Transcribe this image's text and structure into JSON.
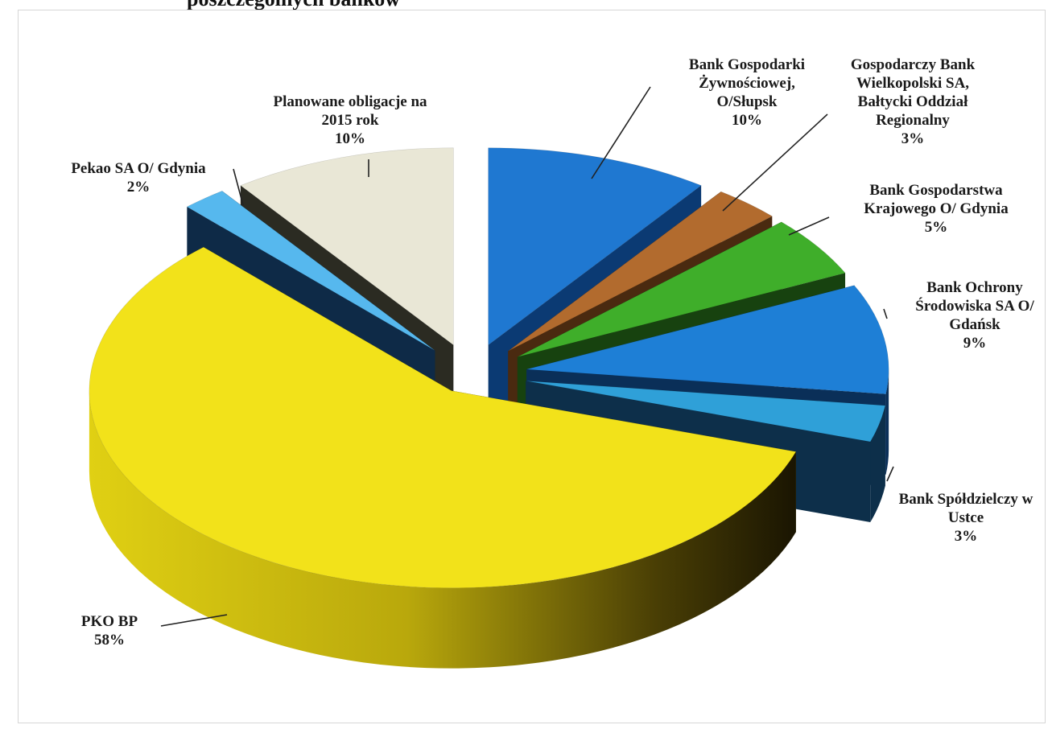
{
  "page": {
    "title": "poszczególnych banków"
  },
  "chart_data": {
    "type": "pie",
    "style": "3d-exploded",
    "title": "poszczególnych banków",
    "slices": [
      {
        "label": [
          "Bank Gospodarki",
          "Żywnościowej,",
          "O/Słupsk"
        ],
        "value": 10,
        "percent": "10%",
        "color": "#1f78d1",
        "side": "#0b3a73"
      },
      {
        "label": [
          "Gospodarczy Bank",
          "Wielkopolski SA,",
          "Bałtycki Oddział",
          "Regionalny"
        ],
        "value": 3,
        "percent": "3%",
        "color": "#b26b2e",
        "side": "#4a2a10"
      },
      {
        "label": [
          "Bank Gospodarstwa",
          "Krajowego O/ Gdynia"
        ],
        "value": 5,
        "percent": "5%",
        "color": "#3fae2a",
        "side": "#17420f"
      },
      {
        "label": [
          "Bank Ochrony",
          "Środowiska SA O/",
          "Gdańsk"
        ],
        "value": 9,
        "percent": "9%",
        "color": "#1e7fd6",
        "side": "#0a2f58"
      },
      {
        "label": [
          "Bank Spółdzielczy w",
          "Ustce"
        ],
        "value": 3,
        "percent": "3%",
        "color": "#2fa0d8",
        "side": "#0d2f4a"
      },
      {
        "label": [
          "PKO BP"
        ],
        "value": 58,
        "percent": "58%",
        "color": "#f2e21a",
        "side": "#6b5d05"
      },
      {
        "label": [
          "Pekao SA O/ Gdynia"
        ],
        "value": 2,
        "percent": "2%",
        "color": "#56b8ee",
        "side": "#0e2a47"
      },
      {
        "label": [
          "Planowane obligacje na",
          "2015 rok"
        ],
        "value": 10,
        "percent": "10%",
        "color": "#e9e7d6",
        "side": "#2b2b22"
      }
    ]
  }
}
